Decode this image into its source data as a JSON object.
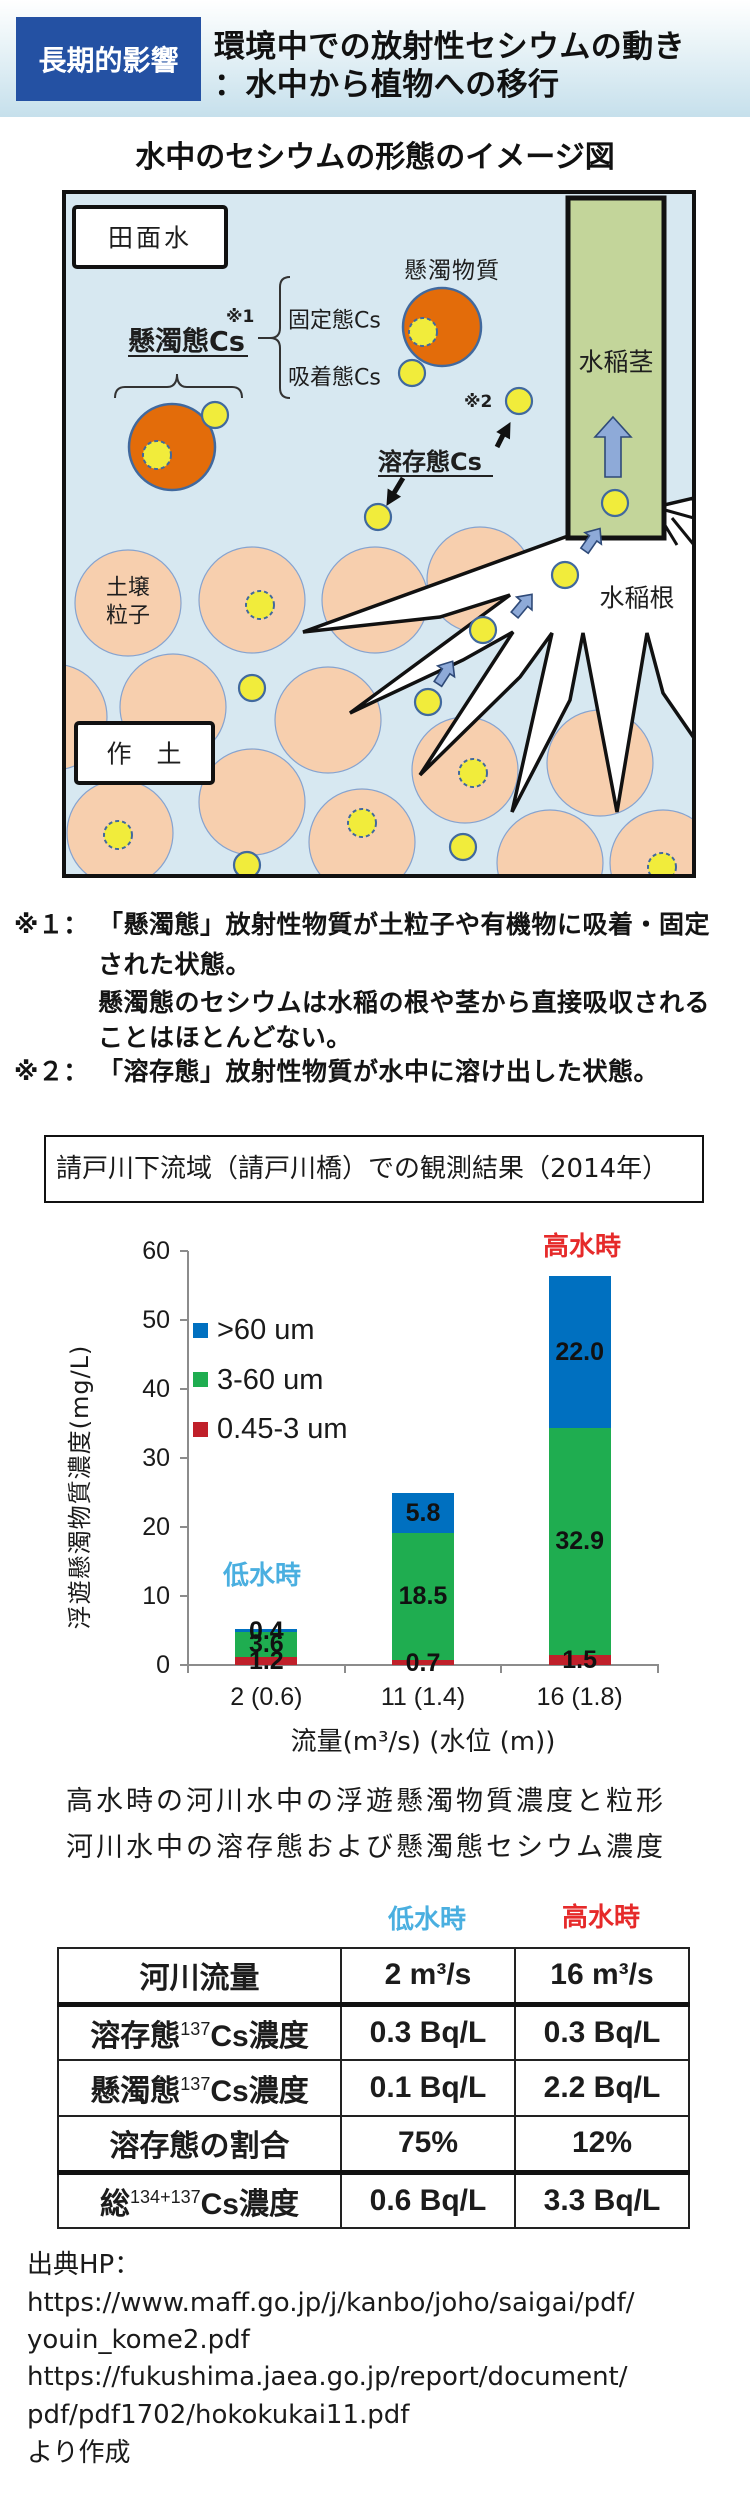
{
  "header": {
    "badge": "長期的影響",
    "title_line1": "環境中での放射性セシウムの動き",
    "title_line2": "：水中から植物への移行"
  },
  "colors": {
    "badge_bg": "#2451a3",
    "water": "#d7e8f1",
    "suspended_particle": "#e36c0a",
    "cesium": "#f1ec3b",
    "particle_outline": "#41699e",
    "soil_particle": "#f7cfae",
    "rice_stem": "#c3d59a",
    "uptake_arrow": "#8eaad8",
    "low_water": "#4aafe0",
    "high_water": "#e62a2a"
  },
  "diagram": {
    "title": "水中のセシウムの形態のイメージ図",
    "labels": {
      "paddy_water": "田面水",
      "topsoil": "作　土",
      "suspended_cs": "懸濁態Cs",
      "note1_mark": "※1",
      "fixed_cs": "固定態Cs",
      "adsorbed_cs": "吸着態Cs",
      "suspended_matter": "懸濁物質",
      "note2_mark": "※2",
      "dissolved_cs": "溶存態Cs",
      "rice_stem": "水稲茎",
      "rice_root": "水稲根",
      "soil_particle_line1": "土壌",
      "soil_particle_line2": "粒子"
    }
  },
  "notes": [
    {
      "mark": "※１：",
      "lines": [
        "「懸濁態」放射性物質が土粒子や有機物に吸着・固定",
        "された状態。",
        "懸濁態のセシウムは水稲の根や茎から直接吸収される",
        "ことはほとんどない。"
      ]
    },
    {
      "mark": "※２：",
      "lines": [
        "「溶存態」放射性物質が水中に溶け出した状態。"
      ]
    }
  ],
  "chart_data": {
    "type": "bar",
    "stacked": true,
    "title": "請戸川下流域（請戸川橋）での観測結果（2014年）",
    "categories": [
      "2 (0.6)",
      "11 (1.4)",
      "16 (1.8)"
    ],
    "series": [
      {
        "name": "0.45-3 um",
        "color": "#c0202a",
        "values": [
          1.2,
          0.7,
          1.5
        ]
      },
      {
        "name": "3-60 um",
        "color": "#1fad50",
        "values": [
          3.6,
          18.5,
          32.9
        ]
      },
      {
        "name": ">60 um",
        "color": "#0070c0",
        "values": [
          0.4,
          5.8,
          22.0
        ]
      }
    ],
    "legend_order": [
      ">60 um",
      "3-60 um",
      "0.45-3 um"
    ],
    "legend_position": "upper-left inside plot",
    "xlabel": "流量(m³/s) (水位 (m))",
    "ylabel": "浮遊懸濁物質濃度(mg/L)",
    "ylim": [
      0,
      60
    ],
    "yticks": [
      0,
      10,
      20,
      30,
      40,
      50,
      60
    ],
    "grid": false,
    "data_labels": true,
    "annotations": [
      {
        "text": "低水時",
        "category": "2 (0.6)",
        "color": "#4aafe0"
      },
      {
        "text": "高水時",
        "category": "16 (1.8)",
        "color": "#e62a2a"
      }
    ]
  },
  "table_section": {
    "title_line1": "高水時の河川水中の浮遊懸濁物質濃度と粒形",
    "title_line2": "河川水中の溶存態および懸濁態セシウム濃度",
    "column_labels": [
      "低水時",
      "高水時"
    ],
    "rows": [
      {
        "label_pre": "河川流量",
        "label_sup": "",
        "label_post": "",
        "low": "2 m³/s",
        "high": "16 m³/s"
      },
      {
        "label_pre": "溶存態",
        "label_sup": "137",
        "label_post": "Cs濃度",
        "low": "0.3 Bq/L",
        "high": "0.3 Bq/L"
      },
      {
        "label_pre": "懸濁態",
        "label_sup": "137",
        "label_post": "Cs濃度",
        "low": "0.1 Bq/L",
        "high": "2.2 Bq/L"
      },
      {
        "label_pre": "溶存態の割合",
        "label_sup": "",
        "label_post": "",
        "low": "75%",
        "high": "12%"
      },
      {
        "label_pre": "総",
        "label_sup": "134+137",
        "label_post": "Cs濃度",
        "low": "0.6 Bq/L",
        "high": "3.3 Bq/L"
      }
    ]
  },
  "source": {
    "lines": [
      "出典HP：",
      "https://www.maff.go.jp/j/kanbo/joho/saigai/pdf/",
      "youin_kome2.pdf",
      "https://fukushima.jaea.go.jp/report/document/",
      "pdf/pdf1702/hokokukai11.pdf",
      "より作成"
    ]
  }
}
